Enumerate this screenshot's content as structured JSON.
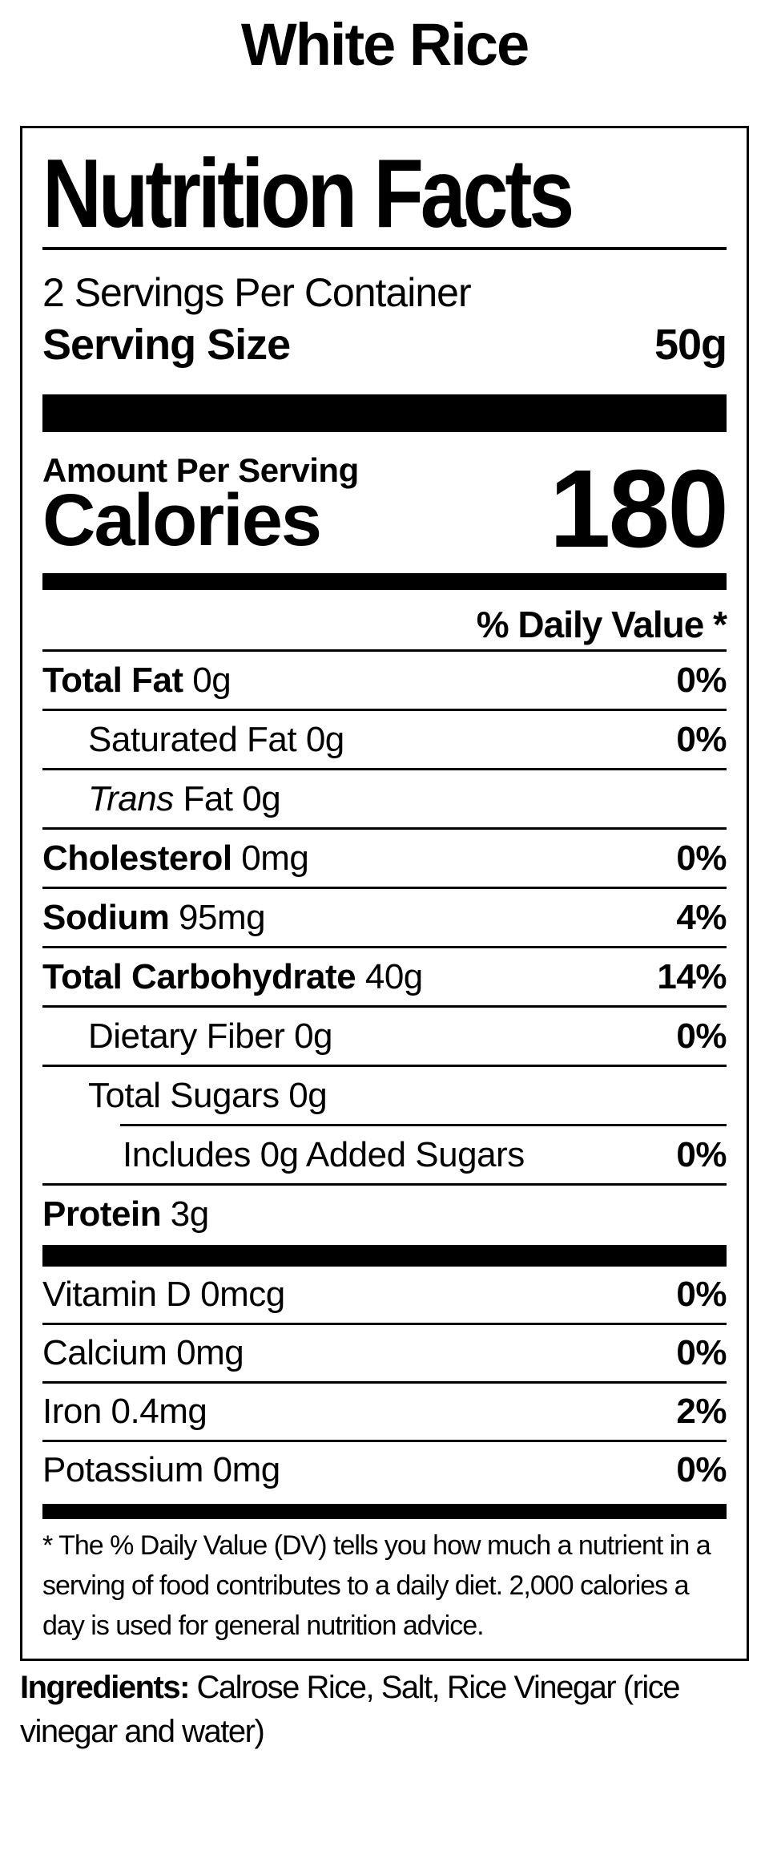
{
  "page": {
    "title": "White Rice"
  },
  "colors": {
    "text": "#000000",
    "background": "#ffffff"
  },
  "label": {
    "title": "Nutrition Facts",
    "servings_per_container": "2 Servings Per Container",
    "serving_size_label": "Serving Size",
    "serving_size_value": "50g",
    "amount_per_serving": "Amount Per Serving",
    "calories_label": "Calories",
    "calories_value": "180",
    "daily_value_header": "% Daily Value *",
    "nutrients": [
      {
        "bold": "Total Fat",
        "rest": " 0g",
        "value": "0%"
      },
      {
        "rest": "Saturated Fat 0g",
        "value": "0%"
      },
      {
        "italic": "Trans",
        "rest": " Fat 0g",
        "value": ""
      },
      {
        "bold": "Cholesterol",
        "rest": " 0mg",
        "value": "0%"
      },
      {
        "bold": "Sodium",
        "rest": " 95mg",
        "value": "4%"
      },
      {
        "bold": "Total Carbohydrate",
        "rest": " 40g",
        "value": "14%"
      },
      {
        "rest": "Dietary Fiber 0g",
        "value": "0%"
      },
      {
        "rest": "Total Sugars 0g",
        "value": ""
      },
      {
        "rest": "Includes 0g Added Sugars",
        "value": "0%"
      },
      {
        "bold": "Protein",
        "rest": " 3g",
        "value": ""
      }
    ],
    "vitamins": [
      {
        "label": "Vitamin D 0mcg",
        "value": "0%"
      },
      {
        "label": "Calcium 0mg",
        "value": "0%"
      },
      {
        "label": "Iron 0.4mg",
        "value": "2%"
      },
      {
        "label": "Potassium 0mg",
        "value": "0%"
      }
    ],
    "footnote_lines": [
      "* The % Daily Value (DV) tells you how much a nutrient in a",
      "serving of food contributes to a daily diet. 2,000 calories a",
      "day is used for general nutrition advice."
    ]
  },
  "ingredients": {
    "lines": [
      {
        "bold": "Ingredients:",
        "rest": " Calrose Rice, Salt, Rice Vinegar (rice"
      },
      {
        "rest": "vinegar and water)"
      }
    ]
  }
}
